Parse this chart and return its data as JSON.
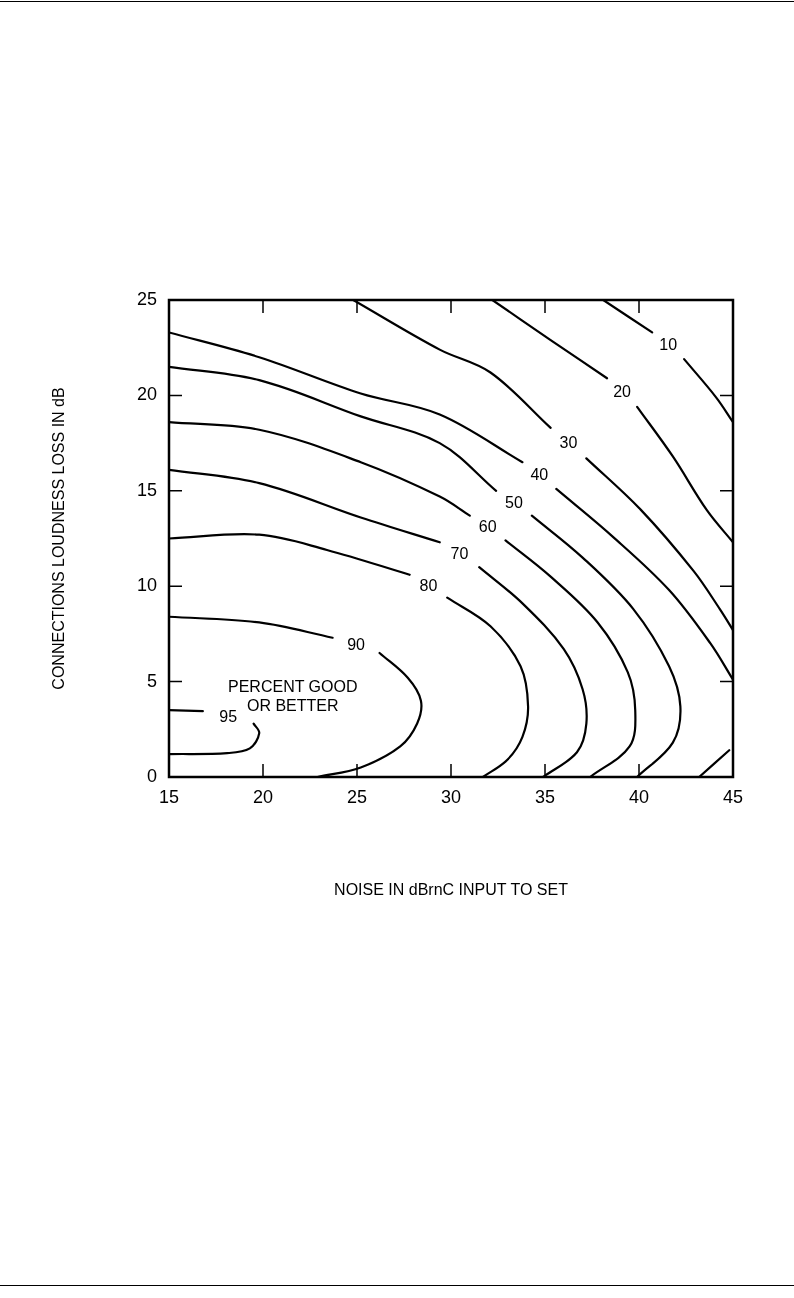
{
  "chart_data": {
    "type": "line",
    "xlabel": "NOISE IN dBrnC INPUT TO SET",
    "ylabel": "CONNECTIONS LOUDNESS LOSS IN dB",
    "xlim": [
      15,
      45
    ],
    "xticks": [
      15,
      20,
      25,
      30,
      35,
      40,
      45
    ],
    "ylim": [
      0,
      25
    ],
    "yticks": [
      0,
      5,
      10,
      15,
      20,
      25
    ],
    "grid": false,
    "legend": false,
    "marker": "none",
    "line_style": "solid",
    "annotations": [
      "PERCENT GOOD\nOR BETTER"
    ],
    "series": [
      {
        "name": "95",
        "color": "#000000",
        "x": [
          15,
          16.8,
          null,
          19.5,
          19.8,
          19.3,
          18.1,
          15
        ],
        "values": [
          3.5,
          3.45,
          null,
          2.8,
          2.3,
          1.5,
          1.25,
          1.2
        ]
      },
      {
        "name": "90",
        "color": "#000000",
        "x": [
          15,
          19.8,
          23.7,
          null,
          26.2,
          27.7,
          28.4,
          28.2,
          27.3,
          25.2,
          22.9
        ],
        "values": [
          8.4,
          8.1,
          7.3,
          null,
          6.5,
          5.2,
          4.0,
          2.8,
          1.6,
          0.5,
          0
        ]
      },
      {
        "name": "80",
        "color": "#000000",
        "x": [
          15,
          19.8,
          23.4,
          27.8,
          null,
          29.8,
          32.1,
          33.7,
          34.1,
          33.8,
          33,
          31.7
        ],
        "values": [
          12.5,
          12.7,
          11.9,
          10.6,
          null,
          9.4,
          7.9,
          5.8,
          3.7,
          2.1,
          0.9,
          0
        ]
      },
      {
        "name": "70",
        "color": "#000000",
        "x": [
          15,
          19.8,
          25.2,
          29.4,
          null,
          31.5,
          33.8,
          36,
          37,
          37.2,
          36.7,
          34.9
        ],
        "values": [
          16.1,
          15.4,
          13.6,
          12.3,
          null,
          11.0,
          9.1,
          6.7,
          4.6,
          2.8,
          1.3,
          0
        ]
      },
      {
        "name": "60",
        "color": "#000000",
        "x": [
          15,
          19.8,
          25.2,
          29.4,
          31,
          null,
          32.9,
          35.3,
          37.8,
          39.4,
          39.8,
          39.5,
          37.4
        ],
        "values": [
          18.6,
          18.2,
          16.5,
          14.7,
          13.7,
          null,
          12.4,
          10.5,
          8.1,
          5.5,
          3.5,
          1.6,
          0
        ]
      },
      {
        "name": "50",
        "color": "#000000",
        "x": [
          15,
          19.8,
          25.2,
          29.4,
          32.4,
          null,
          34.3,
          37,
          39.7,
          41.6,
          42.2,
          41.8,
          39.9
        ],
        "values": [
          21.5,
          20.8,
          18.9,
          17.5,
          15.0,
          null,
          13.7,
          11.5,
          8.8,
          5.8,
          3.7,
          1.8,
          0
        ]
      },
      {
        "name": "40",
        "color": "#000000",
        "x": [
          15,
          19.8,
          25.2,
          29.4,
          33.8,
          null,
          35.6,
          38.6,
          41.6,
          43.8,
          45,
          null,
          44.8,
          43.2
        ],
        "values": [
          23.3,
          22.0,
          20.1,
          19.0,
          16.5,
          null,
          15.1,
          12.6,
          9.8,
          7.0,
          5.1,
          null,
          1.4,
          0
        ]
      },
      {
        "name": "30",
        "color": "#000000",
        "x": [
          24.8,
          29.4,
          32.1,
          35.3,
          null,
          37.2,
          40.1,
          42.9,
          44.3,
          45
        ],
        "values": [
          25,
          22.4,
          21.2,
          18.3,
          null,
          16.7,
          14,
          10.8,
          8.8,
          7.7
        ]
      },
      {
        "name": "20",
        "color": "#000000",
        "x": [
          32.2,
          35.3,
          38.3,
          null,
          39.9,
          41.8,
          43.6,
          45
        ],
        "values": [
          25,
          22.9,
          20.9,
          null,
          19.4,
          16.8,
          14,
          12.3
        ]
      },
      {
        "name": "10",
        "color": "#000000",
        "x": [
          38.1,
          40.7,
          null,
          42.4,
          44.1,
          45
        ],
        "values": [
          25,
          23.3,
          null,
          21.9,
          19.9,
          18.6
        ]
      }
    ]
  }
}
